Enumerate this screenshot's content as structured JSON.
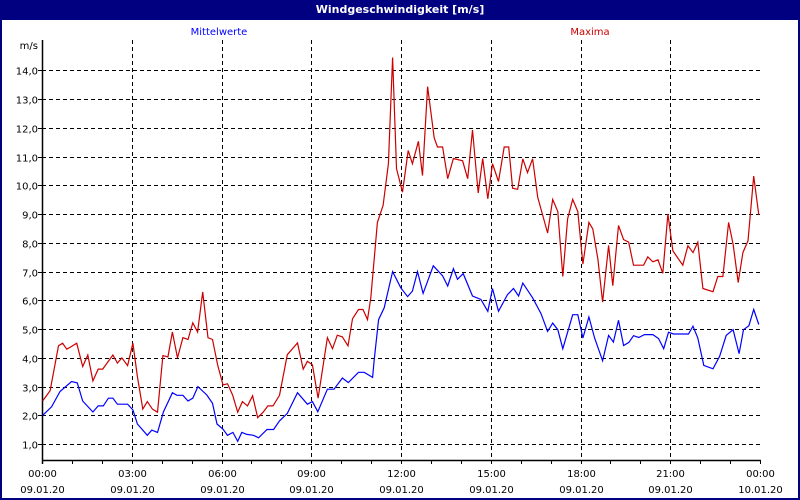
{
  "window": {
    "title": "Windgeschwindigkeit [m/s]"
  },
  "chart_data": {
    "type": "line",
    "title": "Windgeschwindigkeit [m/s]",
    "ylabel": "m/s",
    "xlabel": "",
    "xlim_hours": [
      0,
      24
    ],
    "ylim": [
      0.45,
      15.05
    ],
    "grid": true,
    "y_ticks": [
      1,
      2,
      3,
      4,
      5,
      6,
      7,
      8,
      9,
      10,
      11,
      12,
      13,
      14
    ],
    "y_tick_labels": [
      "1,0",
      "2,0",
      "3,0",
      "4,0",
      "5,0",
      "6,0",
      "7,0",
      "8,0",
      "9,0",
      "10,0",
      "11,0",
      "12,0",
      "13,0",
      "14,0"
    ],
    "x_ticks": [
      {
        "hour": 0,
        "time": "00:00",
        "date": "09.01.20"
      },
      {
        "hour": 3,
        "time": "03:00",
        "date": "09.01.20"
      },
      {
        "hour": 6,
        "time": "06:00",
        "date": "09.01.20"
      },
      {
        "hour": 9,
        "time": "09:00",
        "date": "09.01.20"
      },
      {
        "hour": 12,
        "time": "12:00",
        "date": "09.01.20"
      },
      {
        "hour": 15,
        "time": "15:00",
        "date": "09.01.20"
      },
      {
        "hour": 18,
        "time": "18:00",
        "date": "09.01.20"
      },
      {
        "hour": 21,
        "time": "21:00",
        "date": "09.01.20"
      },
      {
        "hour": 24,
        "time": "00:00",
        "date": "10.01.20"
      }
    ],
    "legend_placement": "top",
    "series": [
      {
        "name": "Mittelwerte",
        "color": "#0000ff",
        "points": [
          [
            0.02,
            2.0
          ],
          [
            0.32,
            2.3
          ],
          [
            0.6,
            2.83
          ],
          [
            0.99,
            3.18
          ],
          [
            1.18,
            3.13
          ],
          [
            1.36,
            2.5
          ],
          [
            1.7,
            2.12
          ],
          [
            1.88,
            2.33
          ],
          [
            2.05,
            2.33
          ],
          [
            2.22,
            2.6
          ],
          [
            2.37,
            2.6
          ],
          [
            2.52,
            2.39
          ],
          [
            2.86,
            2.39
          ],
          [
            3.04,
            2.19
          ],
          [
            3.19,
            1.7
          ],
          [
            3.52,
            1.31
          ],
          [
            3.67,
            1.49
          ],
          [
            3.86,
            1.41
          ],
          [
            4.06,
            2.13
          ],
          [
            4.36,
            2.79
          ],
          [
            4.51,
            2.7
          ],
          [
            4.71,
            2.7
          ],
          [
            4.88,
            2.5
          ],
          [
            5.04,
            2.6
          ],
          [
            5.21,
            3.0
          ],
          [
            5.51,
            2.71
          ],
          [
            5.7,
            2.42
          ],
          [
            5.85,
            1.7
          ],
          [
            6.05,
            1.52
          ],
          [
            6.2,
            1.31
          ],
          [
            6.38,
            1.41
          ],
          [
            6.54,
            1.1
          ],
          [
            6.68,
            1.41
          ],
          [
            6.85,
            1.34
          ],
          [
            7.07,
            1.31
          ],
          [
            7.24,
            1.22
          ],
          [
            7.52,
            1.51
          ],
          [
            7.74,
            1.51
          ],
          [
            7.94,
            1.81
          ],
          [
            8.2,
            2.07
          ],
          [
            8.54,
            2.79
          ],
          [
            8.87,
            2.39
          ],
          [
            9.04,
            2.48
          ],
          [
            9.22,
            2.13
          ],
          [
            9.54,
            2.91
          ],
          [
            9.76,
            2.91
          ],
          [
            10.04,
            3.3
          ],
          [
            10.24,
            3.14
          ],
          [
            10.58,
            3.5
          ],
          [
            10.77,
            3.5
          ],
          [
            11.05,
            3.32
          ],
          [
            11.1,
            3.9
          ],
          [
            11.25,
            5.33
          ],
          [
            11.44,
            5.74
          ],
          [
            11.72,
            7.0
          ],
          [
            11.99,
            6.44
          ],
          [
            12.22,
            6.13
          ],
          [
            12.38,
            6.32
          ],
          [
            12.55,
            7.0
          ],
          [
            12.74,
            6.24
          ],
          [
            13.08,
            7.2
          ],
          [
            13.39,
            6.85
          ],
          [
            13.56,
            6.5
          ],
          [
            13.75,
            7.1
          ],
          [
            13.89,
            6.73
          ],
          [
            14.08,
            6.93
          ],
          [
            14.39,
            6.15
          ],
          [
            14.67,
            6.03
          ],
          [
            14.9,
            5.62
          ],
          [
            15.06,
            6.41
          ],
          [
            15.26,
            5.62
          ],
          [
            15.56,
            6.2
          ],
          [
            15.76,
            6.41
          ],
          [
            15.93,
            6.15
          ],
          [
            16.07,
            6.6
          ],
          [
            16.4,
            6.09
          ],
          [
            16.68,
            5.54
          ],
          [
            16.9,
            4.92
          ],
          [
            17.07,
            5.21
          ],
          [
            17.24,
            4.98
          ],
          [
            17.41,
            4.32
          ],
          [
            17.74,
            5.5
          ],
          [
            17.91,
            5.5
          ],
          [
            18.08,
            4.69
          ],
          [
            18.28,
            5.42
          ],
          [
            18.47,
            4.69
          ],
          [
            18.74,
            3.9
          ],
          [
            18.94,
            4.78
          ],
          [
            19.1,
            4.55
          ],
          [
            19.27,
            5.31
          ],
          [
            19.44,
            4.43
          ],
          [
            19.62,
            4.54
          ],
          [
            19.77,
            4.77
          ],
          [
            19.95,
            4.71
          ],
          [
            20.14,
            4.81
          ],
          [
            20.42,
            4.81
          ],
          [
            20.61,
            4.67
          ],
          [
            20.78,
            4.32
          ],
          [
            20.94,
            4.89
          ],
          [
            21.11,
            4.83
          ],
          [
            21.61,
            4.83
          ],
          [
            21.76,
            5.1
          ],
          [
            21.92,
            4.69
          ],
          [
            22.12,
            3.74
          ],
          [
            22.43,
            3.62
          ],
          [
            22.65,
            4.05
          ],
          [
            22.87,
            4.78
          ],
          [
            23.1,
            4.98
          ],
          [
            23.3,
            4.15
          ],
          [
            23.45,
            4.98
          ],
          [
            23.63,
            5.12
          ],
          [
            23.79,
            5.68
          ],
          [
            23.96,
            5.16
          ]
        ]
      },
      {
        "name": "Maxima",
        "color": "#cc0000",
        "points": [
          [
            0.02,
            2.5
          ],
          [
            0.27,
            2.86
          ],
          [
            0.38,
            3.47
          ],
          [
            0.55,
            4.42
          ],
          [
            0.69,
            4.51
          ],
          [
            0.83,
            4.3
          ],
          [
            0.99,
            4.4
          ],
          [
            1.16,
            4.51
          ],
          [
            1.36,
            3.7
          ],
          [
            1.53,
            4.1
          ],
          [
            1.7,
            3.2
          ],
          [
            1.88,
            3.61
          ],
          [
            2.03,
            3.61
          ],
          [
            2.37,
            4.1
          ],
          [
            2.52,
            3.82
          ],
          [
            2.67,
            4.0
          ],
          [
            2.86,
            3.73
          ],
          [
            3.04,
            4.51
          ],
          [
            3.19,
            3.35
          ],
          [
            3.37,
            2.22
          ],
          [
            3.52,
            2.48
          ],
          [
            3.69,
            2.22
          ],
          [
            3.86,
            2.11
          ],
          [
            4.04,
            4.08
          ],
          [
            4.21,
            4.03
          ],
          [
            4.36,
            4.9
          ],
          [
            4.53,
            4.0
          ],
          [
            4.71,
            4.7
          ],
          [
            4.88,
            4.64
          ],
          [
            5.04,
            5.22
          ],
          [
            5.2,
            4.9
          ],
          [
            5.37,
            6.29
          ],
          [
            5.55,
            4.7
          ],
          [
            5.7,
            4.64
          ],
          [
            5.87,
            3.76
          ],
          [
            6.05,
            3.06
          ],
          [
            6.2,
            3.1
          ],
          [
            6.37,
            2.71
          ],
          [
            6.54,
            2.11
          ],
          [
            6.7,
            2.48
          ],
          [
            6.87,
            2.33
          ],
          [
            7.04,
            2.68
          ],
          [
            7.21,
            1.92
          ],
          [
            7.39,
            2.11
          ],
          [
            7.55,
            2.33
          ],
          [
            7.72,
            2.33
          ],
          [
            7.94,
            2.7
          ],
          [
            8.2,
            4.11
          ],
          [
            8.54,
            4.52
          ],
          [
            8.73,
            3.61
          ],
          [
            8.87,
            3.88
          ],
          [
            9.04,
            3.76
          ],
          [
            9.23,
            2.6
          ],
          [
            9.54,
            4.7
          ],
          [
            9.71,
            4.32
          ],
          [
            9.87,
            4.79
          ],
          [
            10.04,
            4.73
          ],
          [
            10.23,
            4.42
          ],
          [
            10.38,
            5.36
          ],
          [
            10.58,
            5.68
          ],
          [
            10.73,
            5.68
          ],
          [
            10.88,
            5.33
          ],
          [
            10.99,
            6.09
          ],
          [
            11.21,
            8.71
          ],
          [
            11.4,
            9.3
          ],
          [
            11.58,
            10.75
          ],
          [
            11.72,
            14.44
          ],
          [
            11.85,
            10.58
          ],
          [
            12.05,
            9.76
          ],
          [
            12.24,
            11.21
          ],
          [
            12.38,
            10.75
          ],
          [
            12.58,
            11.53
          ],
          [
            12.72,
            10.34
          ],
          [
            12.89,
            13.43
          ],
          [
            13.11,
            11.65
          ],
          [
            13.22,
            11.33
          ],
          [
            13.39,
            11.33
          ],
          [
            13.56,
            10.23
          ],
          [
            13.75,
            10.93
          ],
          [
            14.06,
            10.85
          ],
          [
            14.23,
            10.23
          ],
          [
            14.39,
            11.92
          ],
          [
            14.58,
            9.73
          ],
          [
            14.73,
            10.93
          ],
          [
            14.9,
            9.53
          ],
          [
            15.06,
            10.75
          ],
          [
            15.26,
            10.13
          ],
          [
            15.45,
            11.33
          ],
          [
            15.6,
            11.33
          ],
          [
            15.73,
            9.9
          ],
          [
            15.9,
            9.86
          ],
          [
            16.07,
            10.92
          ],
          [
            16.23,
            10.44
          ],
          [
            16.4,
            10.92
          ],
          [
            16.57,
            9.59
          ],
          [
            16.9,
            8.34
          ],
          [
            17.07,
            9.51
          ],
          [
            17.24,
            9.09
          ],
          [
            17.41,
            6.83
          ],
          [
            17.57,
            8.83
          ],
          [
            17.74,
            9.51
          ],
          [
            17.91,
            9.09
          ],
          [
            18.08,
            7.26
          ],
          [
            18.28,
            8.71
          ],
          [
            18.41,
            8.48
          ],
          [
            18.58,
            7.43
          ],
          [
            18.74,
            5.94
          ],
          [
            18.94,
            7.91
          ],
          [
            19.08,
            6.51
          ],
          [
            19.27,
            8.6
          ],
          [
            19.44,
            8.11
          ],
          [
            19.61,
            8.02
          ],
          [
            19.77,
            7.22
          ],
          [
            20.11,
            7.22
          ],
          [
            20.25,
            7.51
          ],
          [
            20.42,
            7.34
          ],
          [
            20.59,
            7.41
          ],
          [
            20.75,
            6.94
          ],
          [
            20.92,
            9.0
          ],
          [
            21.09,
            7.72
          ],
          [
            21.42,
            7.22
          ],
          [
            21.59,
            7.9
          ],
          [
            21.76,
            7.66
          ],
          [
            21.92,
            8.02
          ],
          [
            22.09,
            6.41
          ],
          [
            22.43,
            6.3
          ],
          [
            22.59,
            6.83
          ],
          [
            22.76,
            6.83
          ],
          [
            22.95,
            8.71
          ],
          [
            23.1,
            7.95
          ],
          [
            23.27,
            6.62
          ],
          [
            23.43,
            7.66
          ],
          [
            23.6,
            8.07
          ],
          [
            23.79,
            10.32
          ],
          [
            23.96,
            8.97
          ]
        ]
      }
    ]
  }
}
